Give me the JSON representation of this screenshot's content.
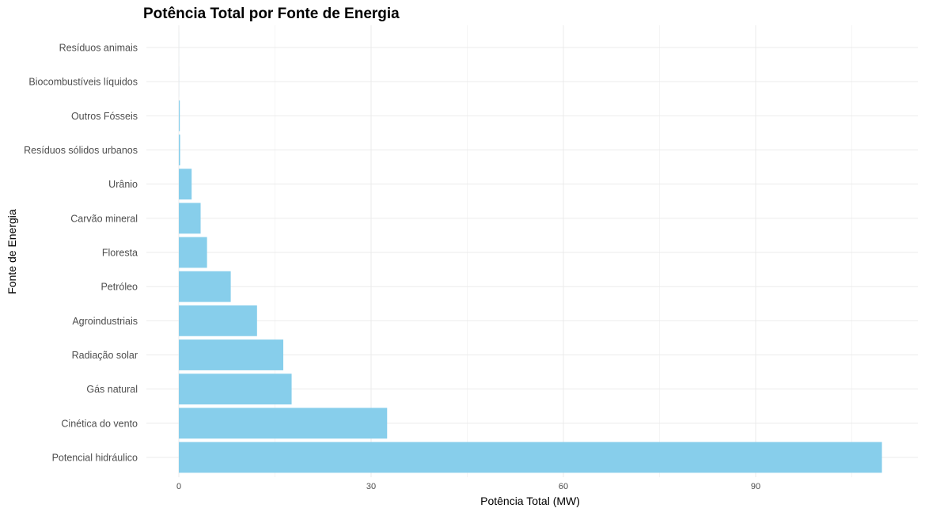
{
  "chart_data": {
    "type": "bar",
    "orientation": "horizontal",
    "title": "Potência Total por Fonte de Energia",
    "xlabel": "Potência Total (MW)",
    "ylabel": "Fonte de Energia",
    "categories": [
      "Potencial hidráulico",
      "Cinética do vento",
      "Gás natural",
      "Radiação solar",
      "Agroindustriais",
      "Petróleo",
      "Floresta",
      "Carvão mineral",
      "Urânio",
      "Resíduos sólidos urbanos",
      "Outros Fósseis",
      "Biocombustíveis líquidos",
      "Resíduos animais"
    ],
    "values": [
      109.7,
      32.5,
      17.6,
      16.3,
      12.2,
      8.1,
      4.4,
      3.4,
      2.0,
      0.2,
      0.15,
      0.01,
      0.005
    ],
    "xlim": [
      -5,
      115
    ],
    "xticks": [
      0,
      30,
      60,
      90
    ],
    "bar_color": "#87CEEB",
    "grid": true,
    "legend": "none"
  }
}
